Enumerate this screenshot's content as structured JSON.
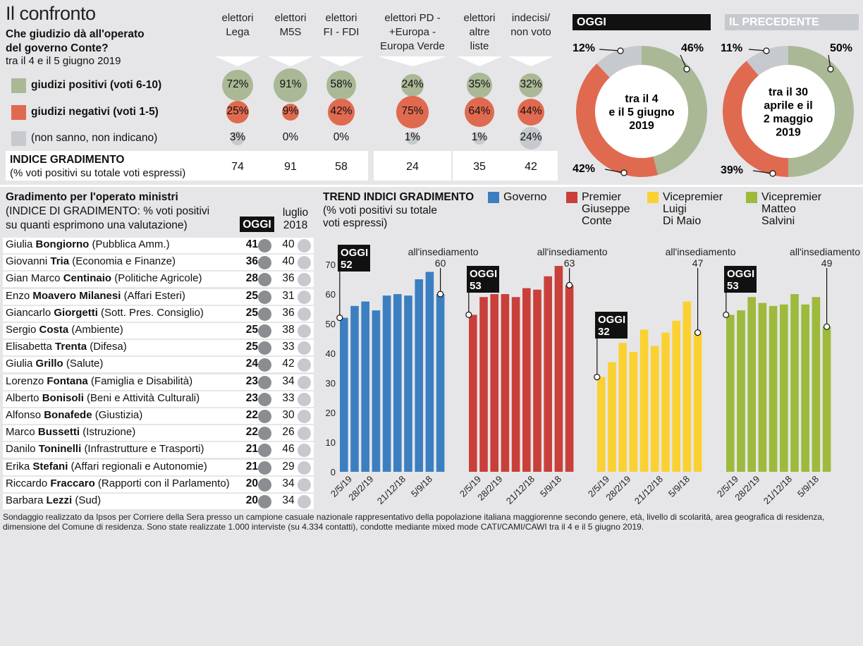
{
  "header": {
    "title": "Il confronto",
    "question_line1": "Che giudizio dà all'operato",
    "question_line2": "del governo Conte?",
    "period": "tra il 4 e il 5 giugno 2019"
  },
  "columns": [
    {
      "line1": "elettori",
      "line2": "Lega",
      "line3": ""
    },
    {
      "line1": "elettori",
      "line2": "M5S",
      "line3": ""
    },
    {
      "line1": "elettori",
      "line2": "FI - FDI",
      "line3": ""
    },
    {
      "line1": "elettori PD -",
      "line2": "+Europa -",
      "line3": "Europa Verde"
    },
    {
      "line1": "elettori",
      "line2": "altre",
      "line3": "liste"
    },
    {
      "line1": "indecisi/",
      "line2": "non voto",
      "line3": ""
    }
  ],
  "rows_legend": {
    "positive": "giudizi positivi (voti 6-10)",
    "negative": "giudizi negativi (voti 1-5)",
    "unknown": "(non sanno, non indicano)"
  },
  "colors": {
    "positive": "#aab896",
    "negative": "#e06a50",
    "unknown": "#c6c9cd",
    "governo": "#3c7fc1",
    "conte": "#c9403a",
    "dimaio": "#fbd132",
    "salvini": "#9dba3c"
  },
  "table_values": {
    "positive": [
      72,
      91,
      58,
      24,
      35,
      32
    ],
    "negative": [
      25,
      9,
      42,
      75,
      64,
      44
    ],
    "unknown": [
      3,
      0,
      0,
      1,
      1,
      24
    ],
    "positive_text": [
      "72%",
      "91%",
      "58%",
      "24%",
      "35%",
      "32%"
    ],
    "negative_text": [
      "25%",
      "9%",
      "42%",
      "75%",
      "64%",
      "44%"
    ],
    "unknown_text": [
      "3%",
      "0%",
      "0%",
      "1%",
      "1%",
      "24%"
    ]
  },
  "index": {
    "label": "INDICE GRADIMENTO",
    "sublabel": "(% voti positivi su totale voti espressi)",
    "values": [
      "74",
      "91",
      "58",
      "24",
      "35",
      "42"
    ]
  },
  "donut_today": {
    "header": "OGGI",
    "center_lines": [
      "tra il 4",
      "e il 5 giugno",
      "2019"
    ],
    "positive": 46,
    "negative": 42,
    "unknown": 12,
    "positive_label": "46%",
    "negative_label": "42%",
    "unknown_label": "12%"
  },
  "donut_prev": {
    "header": "IL PRECEDENTE",
    "center_lines": [
      "tra il 30",
      "aprile e il",
      "2 maggio",
      "2019"
    ],
    "positive": 50,
    "negative": 39,
    "unknown": 11,
    "positive_label": "50%",
    "negative_label": "39%",
    "unknown_label": "11%"
  },
  "ministers": {
    "title": "Gradimento per l'operato ministri",
    "sub1": "(INDICE DI GRADIMENTO: % voti positivi",
    "sub2": "su quanti esprimono una valutazione)",
    "col_today": "OGGI",
    "col_prev_line1": "luglio",
    "col_prev_line2": "2018",
    "rows": [
      {
        "first": "Giulia",
        "last": "Bongiorno",
        "role": "(Pubblica Amm.)",
        "today": "41",
        "prev": "40"
      },
      {
        "first": "Giovanni",
        "last": "Tria",
        "role": "(Economia e Finanze)",
        "today": "36",
        "prev": "40"
      },
      {
        "first": "Gian Marco",
        "last": "Centinaio",
        "role": "(Politiche Agricole)",
        "today": "28",
        "prev": "36"
      },
      {
        "first": "Enzo",
        "last": "Moavero Milanesi",
        "role": "(Affari Esteri)",
        "today": "25",
        "prev": "31"
      },
      {
        "first": "Giancarlo",
        "last": "Giorgetti",
        "role": "(Sott. Pres. Consiglio)",
        "today": "25",
        "prev": "36"
      },
      {
        "first": "Sergio",
        "last": "Costa",
        "role": "(Ambiente)",
        "today": "25",
        "prev": "38"
      },
      {
        "first": "Elisabetta",
        "last": "Trenta",
        "role": "(Difesa)",
        "today": "25",
        "prev": "33"
      },
      {
        "first": "Giulia",
        "last": "Grillo",
        "role": "(Salute)",
        "today": "24",
        "prev": "42"
      },
      {
        "first": "Lorenzo",
        "last": "Fontana",
        "role": "(Famiglia e Disabilità)",
        "today": "23",
        "prev": "34"
      },
      {
        "first": "Alberto",
        "last": "Bonisoli",
        "role": "(Beni e Attività Culturali)",
        "today": "23",
        "prev": "33"
      },
      {
        "first": "Alfonso",
        "last": "Bonafede",
        "role": "(Giustizia)",
        "today": "22",
        "prev": "30"
      },
      {
        "first": "Marco",
        "last": "Bussetti",
        "role": "(Istruzione)",
        "today": "22",
        "prev": "26"
      },
      {
        "first": "Danilo",
        "last": "Toninelli",
        "role": "(Infrastrutture e Trasporti)",
        "today": "21",
        "prev": "46"
      },
      {
        "first": "Erika",
        "last": "Stefani",
        "role": "(Affari regionali e Autonomie)",
        "today": "21",
        "prev": "29"
      },
      {
        "first": "Riccardo",
        "last": "Fraccaro",
        "role": "(Rapporti con il Parlamento)",
        "today": "20",
        "prev": "34"
      },
      {
        "first": "Barbara",
        "last": "Lezzi",
        "role": "(Sud)",
        "today": "20",
        "prev": "34"
      }
    ]
  },
  "chart_data": {
    "type": "bar",
    "title": "TREND INDICI GRADIMENTO",
    "subtitle_line1": "(%  voti positivi su totale",
    "subtitle_line2": "voti espressi)",
    "ylim": [
      0,
      70
    ],
    "yticks": [
      "0",
      "10",
      "20",
      "30",
      "40",
      "50",
      "60",
      "70"
    ],
    "xticks": [
      "2/5/19",
      "28/2/19",
      "21/12/18",
      "5/9/18"
    ],
    "start_label": "all'insediamento",
    "today_label": "OGGI",
    "series": [
      {
        "name_lines": [
          "Governo"
        ],
        "today": "52",
        "start": "60",
        "values": [
          52,
          56,
          57.5,
          54.5,
          59.5,
          60,
          59.5,
          65,
          67.5,
          60
        ]
      },
      {
        "name_lines": [
          "Premier",
          "Giuseppe",
          "Conte"
        ],
        "today": "53",
        "start": "63",
        "values": [
          53,
          59,
          60,
          60,
          59,
          62,
          61.5,
          66,
          69.5,
          63
        ]
      },
      {
        "name_lines": [
          "Vicepremier",
          "Luigi",
          "Di Maio"
        ],
        "today": "32",
        "start": "47",
        "values": [
          32,
          37,
          43.5,
          40.5,
          48,
          42.5,
          47,
          51,
          57.5,
          47
        ]
      },
      {
        "name_lines": [
          "Vicepremier",
          "Matteo",
          "Salvini"
        ],
        "today": "53",
        "start": "49",
        "values": [
          53,
          54.5,
          59,
          57,
          56,
          56.5,
          60,
          56.5,
          59,
          49
        ]
      }
    ]
  },
  "footnote": "Sondaggio realizzato da Ipsos per Corriere della Sera presso un campione casuale nazionale rappresentativo della popolazione italiana maggiorenne secondo genere, età, livello di scolarità, area geografica di residenza, dimensione del Comune di residenza. Sono state realizzate 1.000 interviste (su 4.334 contatti), condotte mediante mixed mode CATI/CAMI/CAWI tra il 4 e il 5 giugno 2019."
}
